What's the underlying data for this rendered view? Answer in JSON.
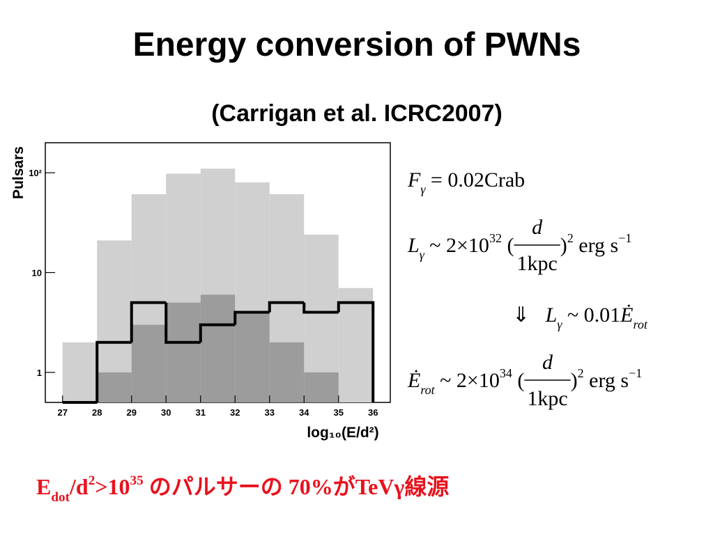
{
  "title": "Energy conversion of PWNs",
  "subtitle": "(Carrigan et al. ICRC2007)",
  "chart_data": {
    "type": "histogram",
    "ylabel": "Pulsars",
    "xlabel": "log₁₀(E/d²)",
    "bins": [
      27,
      28,
      29,
      30,
      31,
      32,
      33,
      34,
      35,
      36
    ],
    "series": [
      {
        "color": "#d0d0d0",
        "style": "fill",
        "values": [
          2,
          21,
          61,
          98,
          110,
          80,
          61,
          24,
          7
        ]
      },
      {
        "color": "#9c9c9c",
        "style": "fill",
        "values": [
          0,
          1,
          3,
          5,
          6,
          4,
          2,
          1,
          0
        ]
      },
      {
        "color": "#000000",
        "style": "step",
        "values": [
          0,
          2,
          5,
          2,
          3,
          4,
          5,
          4,
          5
        ]
      }
    ],
    "xlim": [
      26.5,
      36.5
    ],
    "xticks": [
      27,
      28,
      29,
      30,
      31,
      32,
      33,
      34,
      35,
      36
    ],
    "ylim": [
      0.5,
      200
    ],
    "yticks": [
      1,
      10,
      {
        "value": 100,
        "label": "10²"
      }
    ],
    "log_y": true
  },
  "formulas": [
    [
      {
        "text": "F",
        "style": "it"
      },
      {
        "text": "γ",
        "style": "sub"
      },
      {
        "text": " = 0.02Crab"
      }
    ],
    [
      {
        "text": "L",
        "style": "it"
      },
      {
        "text": "γ",
        "style": "sub"
      },
      {
        "text": " ~ 2×10"
      },
      {
        "text": "32",
        "style": "sup"
      },
      {
        "text": " ("
      },
      {
        "num": "d",
        "den": "1kpc"
      },
      {
        "text": ")"
      },
      {
        "text": "2",
        "style": "sup"
      },
      {
        "text": " erg s"
      },
      {
        "text": "−1",
        "style": "sup"
      }
    ],
    [
      {
        "text": "⇓   "
      },
      {
        "text": "L",
        "style": "it"
      },
      {
        "text": "γ",
        "style": "sub"
      },
      {
        "text": " ~ 0.01"
      },
      {
        "text": "Ė",
        "style": "it"
      },
      {
        "text": "rot",
        "style": "sub"
      }
    ],
    [
      {
        "text": "Ė",
        "style": "it"
      },
      {
        "text": "rot",
        "style": "sub"
      },
      {
        "text": " ~ 2×10"
      },
      {
        "text": "34",
        "style": "sup"
      },
      {
        "text": " ("
      },
      {
        "num": "d",
        "den": "1kpc"
      },
      {
        "text": ")"
      },
      {
        "text": "2",
        "style": "sup"
      },
      {
        "text": " erg s"
      },
      {
        "text": "−1",
        "style": "sup"
      }
    ]
  ],
  "footer": [
    {
      "text": "E"
    },
    {
      "text": "dot",
      "style": "sub"
    },
    {
      "text": "/d"
    },
    {
      "text": "2",
      "style": "sup"
    },
    {
      "text": ">10"
    },
    {
      "text": "35",
      "style": "sup"
    },
    {
      "text": " のパルサーの 70%がTeVγ線源"
    }
  ]
}
